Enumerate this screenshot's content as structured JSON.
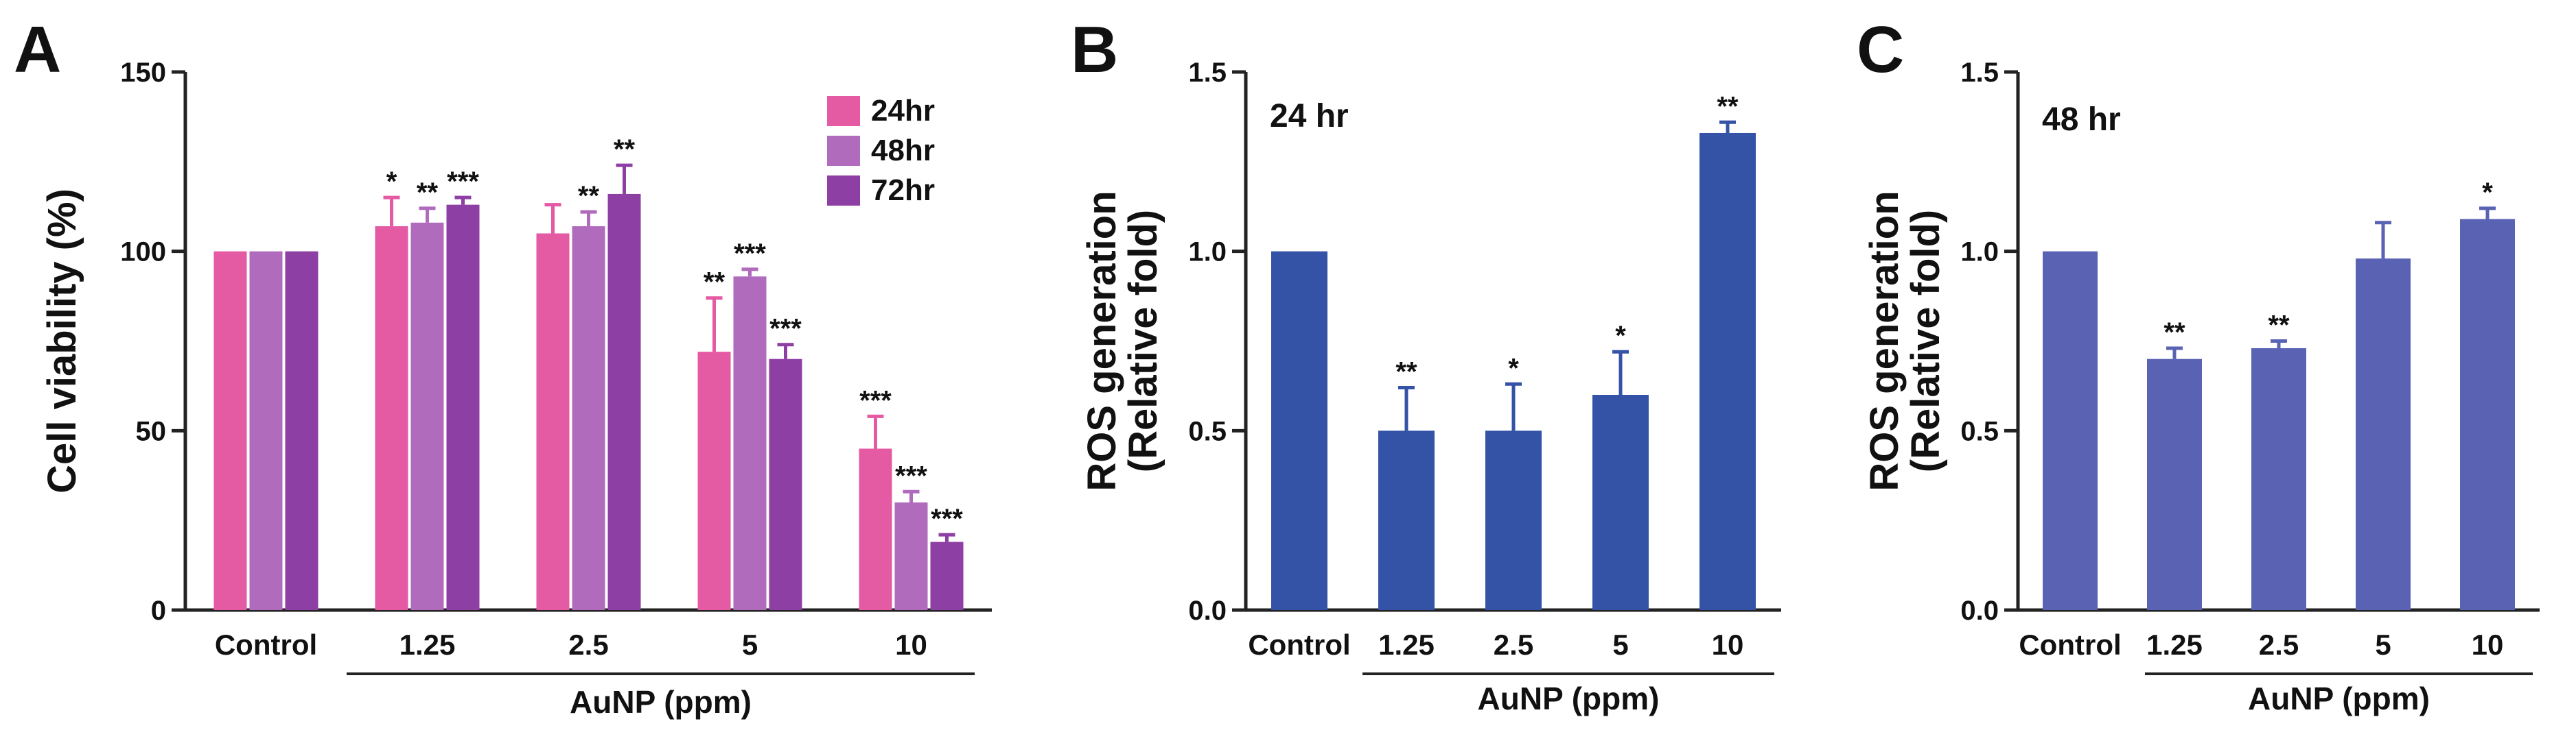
{
  "chart_data": [
    {
      "panel": "A",
      "type": "bar",
      "ylabel": "Cell viability (%)",
      "xlabel": "AuNP (ppm)",
      "ylim": [
        0,
        150
      ],
      "yticks": [
        0,
        50,
        100,
        150
      ],
      "categories": [
        "Control",
        "1.25",
        "2.5",
        "5",
        "10"
      ],
      "legend_position": "top-right",
      "series": [
        {
          "name": "24hr",
          "color": "#e45aa3",
          "values": [
            100,
            107,
            105,
            72,
            45
          ],
          "errors": [
            0,
            8,
            8,
            15,
            9
          ],
          "sig": [
            "",
            "*",
            "",
            "**",
            "***"
          ]
        },
        {
          "name": "48hr",
          "color": "#b06bbd",
          "values": [
            100,
            108,
            107,
            93,
            30
          ],
          "errors": [
            0,
            4,
            4,
            2,
            3
          ],
          "sig": [
            "",
            "**",
            "**",
            "***",
            "***"
          ]
        },
        {
          "name": "72hr",
          "color": "#8e3fa3",
          "values": [
            100,
            113,
            116,
            70,
            19
          ],
          "errors": [
            0,
            2,
            8,
            4,
            2
          ],
          "sig": [
            "",
            "***",
            "**",
            "***",
            "***"
          ]
        }
      ]
    },
    {
      "panel": "B",
      "type": "bar",
      "annotation": "24 hr",
      "ylabel": [
        "ROS generation",
        "(Relative fold)"
      ],
      "xlabel": "AuNP (ppm)",
      "ylim": [
        0,
        1.5
      ],
      "yticks": [
        "0.0",
        "0.5",
        "1.0",
        "1.5"
      ],
      "categories": [
        "Control",
        "1.25",
        "2.5",
        "5",
        "10"
      ],
      "series": [
        {
          "color": "#3452a6",
          "values": [
            1.0,
            0.5,
            0.5,
            0.6,
            1.33
          ],
          "errors": [
            0,
            0.12,
            0.13,
            0.12,
            0.03
          ],
          "sig": [
            "",
            "**",
            "*",
            "*",
            "**"
          ]
        }
      ]
    },
    {
      "panel": "C",
      "type": "bar",
      "annotation": "48 hr",
      "ylabel": [
        "ROS generation",
        "(Relative fold)"
      ],
      "xlabel": "AuNP (ppm)",
      "ylim": [
        0,
        1.5
      ],
      "yticks": [
        "0.0",
        "0.5",
        "1.0",
        "1.5"
      ],
      "categories": [
        "Control",
        "1.25",
        "2.5",
        "5",
        "10"
      ],
      "series": [
        {
          "color": "#5a62b4",
          "values": [
            1.0,
            0.7,
            0.73,
            0.98,
            1.09
          ],
          "errors": [
            0,
            0.03,
            0.02,
            0.1,
            0.03
          ],
          "sig": [
            "",
            "**",
            "**",
            "",
            "*"
          ]
        }
      ]
    }
  ]
}
